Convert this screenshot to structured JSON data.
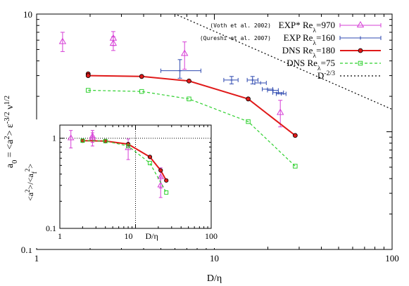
{
  "chart_data": [
    {
      "type": "scatter",
      "scale": "log-log",
      "xlabel": "D/η",
      "ylabel_parts": [
        "a",
        "0",
        " = <a",
        "2",
        "> ε",
        "-3/2",
        " ν",
        "1/2"
      ],
      "xlim": [
        1,
        100
      ],
      "ylim": [
        0.1,
        10
      ],
      "x_tick_labels": [
        "1",
        "10",
        "100"
      ],
      "y_tick_labels": [
        "0.1",
        "1",
        "10"
      ],
      "legend_position": "top-right",
      "series": [
        {
          "name": "EXP* Re",
          "name_sub": "λ",
          "name_tail": "=970",
          "note": "(Voth et al. 2002)",
          "color": "#d63fd6",
          "marker": "triangle",
          "line": "none",
          "points": [
            {
              "x": 1.4,
              "y": 5.8,
              "ylow": 4.8,
              "yhigh": 7.0
            },
            {
              "x": 2.7,
              "y": 6.2,
              "ylow": 5.4,
              "yhigh": 7.1
            },
            {
              "x": 2.7,
              "y": 5.6,
              "ylow": 4.9,
              "yhigh": 6.4
            },
            {
              "x": 6.8,
              "y": 4.6,
              "ylow": 3.4,
              "yhigh": 5.8
            },
            {
              "x": 23.5,
              "y": 1.45,
              "ylow": 1.1,
              "yhigh": 1.85
            }
          ]
        },
        {
          "name": "EXP Re",
          "name_sub": "λ",
          "name_tail": "=160",
          "note": "(Qureshi et al. 2007)",
          "color": "#2f4ab0",
          "marker": "plus",
          "line": "none",
          "points": [
            {
              "x": 6.4,
              "y": 3.3,
              "xlow": 5.0,
              "xhigh": 8.4,
              "ylow": 2.85,
              "yhigh": 4.1
            },
            {
              "x": 12.5,
              "y": 2.75,
              "xlow": 11.3,
              "xhigh": 13.6,
              "ylow": 2.55,
              "yhigh": 2.95
            },
            {
              "x": 16.4,
              "y": 2.75,
              "xlow": 15.3,
              "xhigh": 17.6,
              "ylow": 2.55,
              "yhigh": 2.95
            },
            {
              "x": 18.2,
              "y": 2.6,
              "xlow": 16.9,
              "xhigh": 19.6
            },
            {
              "x": 19.9,
              "y": 2.3,
              "xlow": 18.6,
              "xhigh": 21.3
            },
            {
              "x": 21.4,
              "y": 2.25,
              "xlow": 19.9,
              "xhigh": 22.9
            },
            {
              "x": 22.9,
              "y": 2.15,
              "xlow": 21.3,
              "xhigh": 24.5
            },
            {
              "x": 23.8,
              "y": 2.1,
              "xlow": 22.3,
              "xhigh": 25.3
            }
          ]
        },
        {
          "name": "DNS Re",
          "name_sub": "λ",
          "name_tail": "=180",
          "color": "#e01a1a",
          "marker": "circle",
          "line": "solid",
          "x": [
            1.95,
            1.95,
            3.9,
            7.2,
            15.5,
            28.5
          ],
          "y": [
            3.1,
            3.0,
            2.95,
            2.7,
            1.9,
            0.93
          ]
        },
        {
          "name": "DNS Re",
          "name_sub": "λ",
          "name_tail": "=75",
          "color": "#2fd02f",
          "marker": "square",
          "line": "dashed",
          "x": [
            1.95,
            3.9,
            7.2,
            15.5,
            28.5
          ],
          "y": [
            2.25,
            2.2,
            1.9,
            1.22,
            0.51
          ]
        },
        {
          "name": "D",
          "name_sup": "-2/3",
          "color": "#000000",
          "marker": "none",
          "line": "dotted",
          "x": [
            6.2,
            100
          ],
          "y": [
            9.8,
            1.55
          ]
        }
      ]
    },
    {
      "type": "scatter",
      "scale": "log-log",
      "inset": true,
      "xlabel": "D/η",
      "ylabel_parts": [
        "<a",
        "2",
        ">/<a",
        "f",
        "2",
        ">"
      ],
      "xlim": [
        1,
        100
      ],
      "ylim": [
        0.1,
        1.4
      ],
      "x_tick_labels": [
        "1",
        "10",
        "100"
      ],
      "y_tick_labels": [
        "0.1",
        "1"
      ],
      "reference_lines": {
        "x": 10,
        "y": 1
      },
      "series": [
        {
          "name": "EXP* Re=970",
          "color": "#d63fd6",
          "marker": "triangle",
          "points": [
            {
              "x": 1.4,
              "y": 1.0,
              "ylow": 0.78,
              "yhigh": 1.22
            },
            {
              "x": 2.7,
              "y": 1.0,
              "ylow": 0.82,
              "yhigh": 1.15
            },
            {
              "x": 2.7,
              "y": 1.05,
              "ylow": 0.9,
              "yhigh": 1.22
            },
            {
              "x": 8.0,
              "y": 0.78,
              "ylow": 0.58,
              "yhigh": 0.98
            },
            {
              "x": 21.5,
              "y": 0.37,
              "ylow": 0.28,
              "yhigh": 0.47
            },
            {
              "x": 21.5,
              "y": 0.3,
              "ylow": 0.22,
              "yhigh": 0.37
            }
          ]
        },
        {
          "name": "DNS Re=180",
          "color": "#e01a1a",
          "marker": "circle",
          "line": "solid",
          "x": [
            2.0,
            4.0,
            8.0,
            15.5,
            21.5,
            25.5
          ],
          "y": [
            0.94,
            0.93,
            0.86,
            0.62,
            0.44,
            0.34
          ]
        },
        {
          "name": "DNS Re=75",
          "color": "#2fd02f",
          "marker": "square",
          "line": "dashed",
          "x": [
            2.0,
            4.0,
            8.0,
            15.5,
            25.5
          ],
          "y": [
            0.94,
            0.93,
            0.82,
            0.53,
            0.25
          ]
        }
      ]
    }
  ]
}
